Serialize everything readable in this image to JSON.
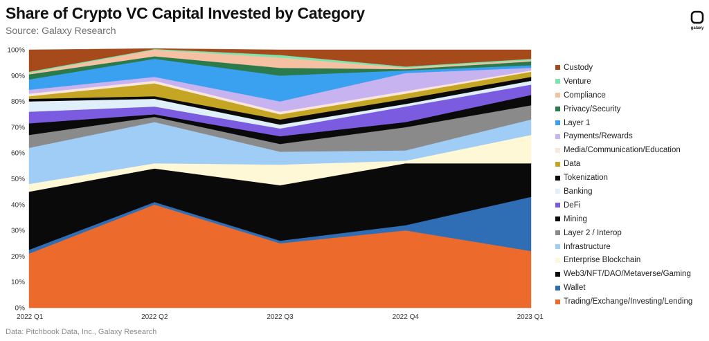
{
  "chart_data": {
    "type": "area",
    "stacked": true,
    "title": "Share of Crypto VC Capital Invested by Category",
    "subtitle": "Source: Galaxy Research",
    "footnote": "Data: Pitchbook Data, Inc., Galaxy Research",
    "logo_text": "galaxy",
    "x": [
      "2022 Q1",
      "2022 Q2",
      "2022 Q3",
      "2022 Q4",
      "2023 Q1"
    ],
    "ylim": [
      0,
      100
    ],
    "yticks": [
      "0%",
      "10%",
      "20%",
      "30%",
      "40%",
      "50%",
      "60%",
      "70%",
      "80%",
      "90%",
      "100%"
    ],
    "grid": true,
    "legend_position": "right",
    "series": [
      {
        "name": "Trading/Exchange/Investing/Lending",
        "color": "#ec6a2c",
        "values": [
          21,
          40,
          25,
          30,
          22
        ]
      },
      {
        "name": "Wallet",
        "color": "#2f6db5",
        "values": [
          1.5,
          1,
          1,
          2,
          21
        ]
      },
      {
        "name": "Web3/NFT/DAO/Metaverse/Gaming",
        "color": "#0a0a0a",
        "values": [
          22.5,
          13,
          21.5,
          24,
          13
        ]
      },
      {
        "name": "Enterprise Blockchain",
        "color": "#fff8d6",
        "values": [
          3,
          2,
          8,
          1,
          11
        ]
      },
      {
        "name": "Infrastructure",
        "color": "#9fcdf5",
        "values": [
          14,
          16,
          5,
          4,
          6
        ]
      },
      {
        "name": "Layer 2 / Interop",
        "color": "#8a8a8a",
        "values": [
          5,
          2,
          3,
          9,
          5.5
        ]
      },
      {
        "name": "Mining",
        "color": "#0a0a0a",
        "values": [
          4.5,
          1,
          3,
          2,
          4
        ]
      },
      {
        "name": "DeFi",
        "color": "#7b5ce0",
        "values": [
          4.5,
          3,
          3,
          6,
          4
        ]
      },
      {
        "name": "Banking",
        "color": "#dff0fb",
        "values": [
          4,
          3,
          1.5,
          1,
          1.5
        ]
      },
      {
        "name": "Tokenization",
        "color": "#0a0a0a",
        "values": [
          1,
          1,
          2,
          2,
          1.5
        ]
      },
      {
        "name": "Data",
        "color": "#c4a624",
        "values": [
          1,
          5,
          2,
          2,
          2
        ]
      },
      {
        "name": "Media/Communication/Education",
        "color": "#fbe6dc",
        "values": [
          1,
          1,
          1,
          1,
          0.5
        ]
      },
      {
        "name": "Payments/Rewards",
        "color": "#c7b3f0",
        "values": [
          1.5,
          1.5,
          4,
          7,
          1
        ]
      },
      {
        "name": "Layer 1",
        "color": "#3aa0f0",
        "values": [
          4,
          7,
          10,
          1,
          1
        ]
      },
      {
        "name": "Privacy/Security",
        "color": "#2b7a4b",
        "values": [
          2,
          1,
          3,
          0.5,
          1.5
        ]
      },
      {
        "name": "Compliance",
        "color": "#f6c1a3",
        "values": [
          0.5,
          2.5,
          4,
          0.5,
          0.5
        ]
      },
      {
        "name": "Venture",
        "color": "#7fe3b0",
        "values": [
          0.5,
          0.3,
          1,
          0.5,
          0.5
        ]
      },
      {
        "name": "Custody",
        "color": "#a64a1c",
        "values": [
          8.5,
          0.2,
          2,
          6.5,
          3.5
        ]
      }
    ]
  }
}
